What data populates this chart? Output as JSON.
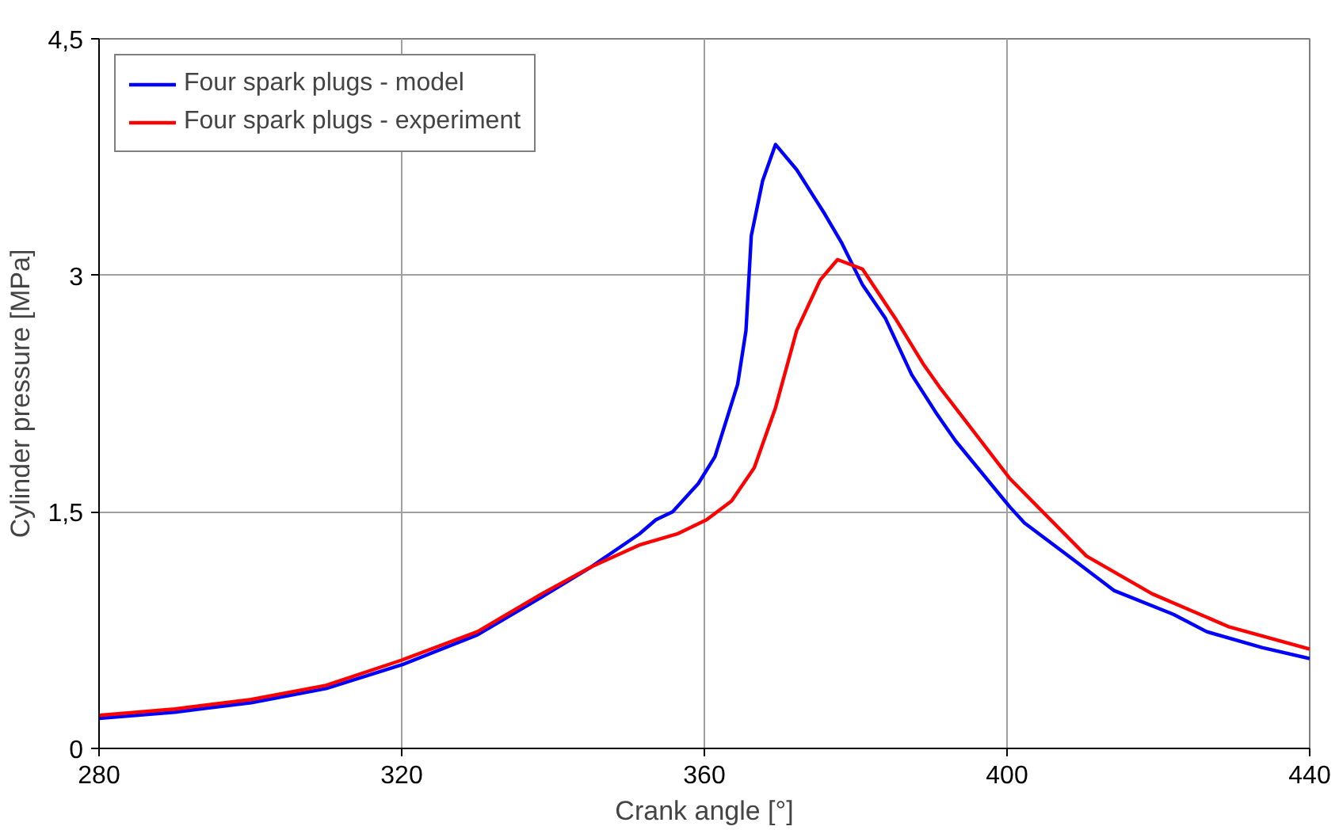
{
  "chart_data": {
    "type": "line",
    "xlabel": "Crank angle [°]",
    "ylabel": "Cylinder pressure [MPa]",
    "xlim": [
      280,
      440
    ],
    "xticks": [
      280,
      320,
      360,
      400,
      440
    ],
    "ylim": [
      0,
      4.5
    ],
    "yticks": [
      0,
      {
        "value": 1.5,
        "label": "1,5"
      },
      3,
      {
        "value": 4.5,
        "label": "4,5"
      }
    ],
    "grid": true,
    "legend": "top left",
    "marker": "none",
    "line_style": "solid",
    "series": [
      {
        "name": "Four spark plugs - model",
        "color": "#0000ff",
        "x": [
          280,
          290,
          300.1,
          310,
          320,
          330,
          338.5,
          345,
          351.4,
          353.6,
          355.8,
          359.2,
          361.4,
          364.4,
          365.5,
          366.2,
          367.7,
          369.4,
          372.2,
          375.9,
          378.1,
          380.9,
          383.9,
          387.4,
          390.6,
          393.2,
          400.4,
          402.3,
          408.4,
          414.2,
          422,
          426.4,
          433.7,
          440
        ],
        "values": [
          0.19,
          0.23,
          0.29,
          0.38,
          0.53,
          0.72,
          0.96,
          1.15,
          1.36,
          1.45,
          1.5,
          1.68,
          1.85,
          2.31,
          2.65,
          3.25,
          3.6,
          3.83,
          3.67,
          3.39,
          3.21,
          2.94,
          2.73,
          2.37,
          2.13,
          1.95,
          1.53,
          1.43,
          1.21,
          1.0,
          0.85,
          0.74,
          0.64,
          0.57
        ]
      },
      {
        "name": "Four spark plugs - experiment",
        "color": "#ff0000",
        "x": [
          280,
          290,
          300.1,
          310,
          320,
          330,
          338.5,
          345,
          351.4,
          356.4,
          360.3,
          363.6,
          366.6,
          369.4,
          372.2,
          375.3,
          377.6,
          380.9,
          385.2,
          388.9,
          391.1,
          400.4,
          410.5,
          419.2,
          429.4,
          440
        ],
        "values": [
          0.21,
          0.25,
          0.31,
          0.4,
          0.56,
          0.74,
          0.98,
          1.15,
          1.29,
          1.36,
          1.45,
          1.57,
          1.78,
          2.16,
          2.65,
          2.97,
          3.1,
          3.04,
          2.73,
          2.44,
          2.29,
          1.71,
          1.22,
          0.98,
          0.77,
          0.63
        ]
      }
    ]
  }
}
